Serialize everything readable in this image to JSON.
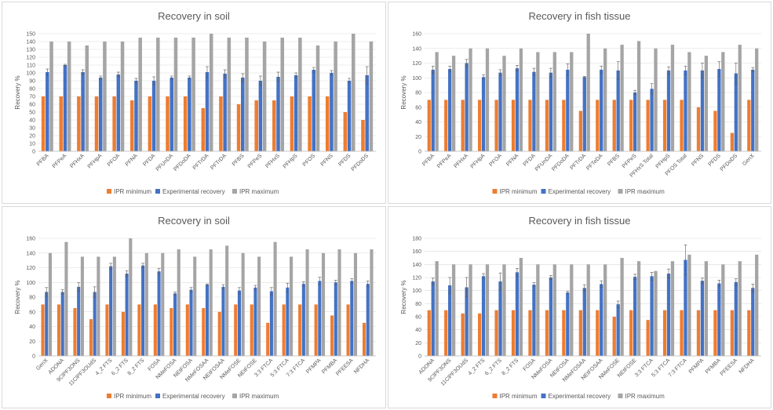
{
  "colors": {
    "min": "#ED7D31",
    "exp": "#4472C4",
    "max": "#A5A5A5",
    "grid": "#D9D9D9",
    "text": "#595959"
  },
  "legend": [
    "IPR minimum",
    "Experimental recovery",
    "IPR maximum"
  ],
  "chart_data": [
    {
      "type": "bar",
      "title": "Recovery in soil",
      "ylabel": "Recovery %",
      "ylim": [
        0,
        150
      ],
      "yticks": [
        0,
        10,
        20,
        30,
        40,
        50,
        60,
        70,
        80,
        90,
        100,
        110,
        120,
        130,
        140,
        150
      ],
      "categories": [
        "PFBA",
        "PFPeA",
        "PFHxA",
        "PFHpA",
        "PFOA",
        "PFNA",
        "PFDA",
        "PFUnDA",
        "PFDoDA",
        "PFTrDA",
        "PFTrDA",
        "PFBS",
        "PFPeS",
        "PFHxS",
        "PFHpS",
        "PFOS",
        "PFNS",
        "PFDS",
        "PFDoDS"
      ],
      "series": [
        {
          "name": "IPR minimum",
          "values": [
            70,
            70,
            70,
            70,
            70,
            65,
            70,
            70,
            70,
            55,
            70,
            60,
            65,
            65,
            70,
            70,
            70,
            50,
            40
          ]
        },
        {
          "name": "Experimental recovery",
          "values": [
            101,
            110,
            101,
            94,
            98,
            90,
            90,
            94,
            94,
            101,
            99,
            94,
            90,
            95,
            97,
            104,
            100,
            90,
            97
          ],
          "errors": [
            4,
            1,
            3,
            2,
            3,
            3,
            5,
            2,
            2,
            7,
            5,
            5,
            6,
            6,
            3,
            3,
            3,
            3,
            11
          ]
        },
        {
          "name": "IPR maximum",
          "values": [
            140,
            140,
            135,
            140,
            140,
            145,
            145,
            145,
            145,
            150,
            145,
            145,
            140,
            145,
            145,
            135,
            140,
            150,
            140
          ]
        }
      ]
    },
    {
      "type": "bar",
      "title": "Recovery in fish tissue",
      "ylabel": "Recovery %",
      "ylim": [
        0,
        160
      ],
      "yticks": [
        0,
        20,
        40,
        60,
        80,
        100,
        120,
        140,
        160
      ],
      "categories": [
        "PFBA",
        "PFPeA",
        "PFHxA",
        "PFHpA",
        "PFOA",
        "PFNA",
        "PFDA",
        "PFUnDA",
        "PFDoDA",
        "PFTrDA",
        "PFTeDA",
        "PFBS",
        "PFPeS",
        "PFHxS Total",
        "PFHpS",
        "PFOS Total",
        "PFNS",
        "PFDS",
        "PFDoDS",
        "GenX"
      ],
      "series": [
        {
          "name": "IPR minimum",
          "values": [
            70,
            70,
            70,
            70,
            70,
            70,
            70,
            70,
            70,
            55,
            70,
            70,
            70,
            70,
            70,
            70,
            60,
            55,
            25,
            70
          ]
        },
        {
          "name": "Experimental recovery",
          "values": [
            111,
            112,
            120,
            101,
            107,
            113,
            108,
            107,
            111,
            101,
            111,
            110,
            80,
            85,
            110,
            110,
            110,
            112,
            106,
            111
          ],
          "errors": [
            5,
            4,
            5,
            3,
            4,
            4,
            5,
            6,
            8,
            1,
            5,
            12,
            3,
            7,
            5,
            6,
            10,
            10,
            14,
            3
          ]
        },
        {
          "name": "IPR maximum",
          "values": [
            135,
            130,
            140,
            140,
            130,
            140,
            135,
            135,
            135,
            160,
            140,
            145,
            150,
            140,
            145,
            135,
            130,
            135,
            145,
            140
          ]
        }
      ]
    },
    {
      "type": "bar",
      "title": "Recovery in soil",
      "ylabel": "Recovery %",
      "ylim": [
        0,
        160
      ],
      "yticks": [
        0,
        20,
        40,
        60,
        80,
        100,
        120,
        140,
        160
      ],
      "categories": [
        "GenX",
        "ADONA",
        "9ClPF3ONS",
        "11ClPF3OUdS",
        "4_2 FTS",
        "6_2 FTS",
        "8_2 FTS",
        "FOSA",
        "NMeFOSA",
        "NEtFOSA",
        "NMeFOSAA",
        "NEtFOSAA",
        "NMeFOSE",
        "NEtFOSE",
        "3:3 FTCA",
        "5:3 FTCA",
        "7:3 FTCA",
        "PFMPA",
        "PFMBA",
        "PFEESA",
        "NFDHA"
      ],
      "series": [
        {
          "name": "IPR minimum",
          "values": [
            70,
            70,
            65,
            50,
            70,
            60,
            70,
            70,
            65,
            70,
            65,
            60,
            70,
            70,
            45,
            70,
            70,
            70,
            55,
            70,
            45
          ]
        },
        {
          "name": "Experimental recovery",
          "values": [
            87,
            87,
            94,
            87,
            122,
            112,
            123,
            115,
            85,
            90,
            97,
            94,
            89,
            93,
            88,
            93,
            98,
            102,
            100,
            102,
            98
          ],
          "errors": [
            6,
            3,
            6,
            7,
            4,
            4,
            3,
            4,
            2,
            3,
            1,
            3,
            4,
            3,
            5,
            6,
            3,
            5,
            3,
            3,
            4
          ]
        },
        {
          "name": "IPR maximum",
          "values": [
            140,
            155,
            135,
            135,
            135,
            160,
            140,
            140,
            145,
            135,
            145,
            150,
            140,
            135,
            155,
            135,
            145,
            140,
            145,
            140,
            145
          ]
        }
      ]
    },
    {
      "type": "bar",
      "title": "Recovery in fish tissue",
      "ylabel": "Recovery %",
      "ylim": [
        0,
        180
      ],
      "yticks": [
        0,
        20,
        40,
        60,
        80,
        100,
        120,
        140,
        160,
        180
      ],
      "categories": [
        "ADONA",
        "9ClPF3ONS",
        "11ClPF3OUdS",
        "4_2 FTS",
        "6_2 FTS",
        "8_2 FTS",
        "FOSA",
        "NMeFOSA",
        "NEtFOSA",
        "NMeFOSAA",
        "NEtFOSAA",
        "NMeFOSE",
        "NEtFOSE",
        "3:3 FTCA",
        "5:3 FTCA",
        "7:3 FTCA",
        "PFMPA",
        "PFMBA",
        "PFEESA",
        "NFDHA"
      ],
      "series": [
        {
          "name": "IPR minimum",
          "values": [
            70,
            70,
            65,
            65,
            70,
            70,
            70,
            70,
            70,
            70,
            70,
            60,
            70,
            55,
            70,
            70,
            70,
            70,
            70,
            70
          ]
        },
        {
          "name": "Experimental recovery",
          "values": [
            114,
            108,
            105,
            122,
            114,
            128,
            109,
            120,
            97,
            104,
            110,
            79,
            121,
            122,
            126,
            147,
            115,
            111,
            113,
            104
          ],
          "errors": [
            5,
            12,
            15,
            4,
            13,
            6,
            3,
            3,
            2,
            5,
            5,
            5,
            4,
            6,
            7,
            23,
            4,
            5,
            5,
            6
          ]
        },
        {
          "name": "IPR maximum",
          "values": [
            145,
            140,
            140,
            140,
            140,
            150,
            140,
            140,
            140,
            140,
            140,
            150,
            145,
            130,
            145,
            155,
            145,
            140,
            145,
            155
          ]
        }
      ]
    }
  ]
}
